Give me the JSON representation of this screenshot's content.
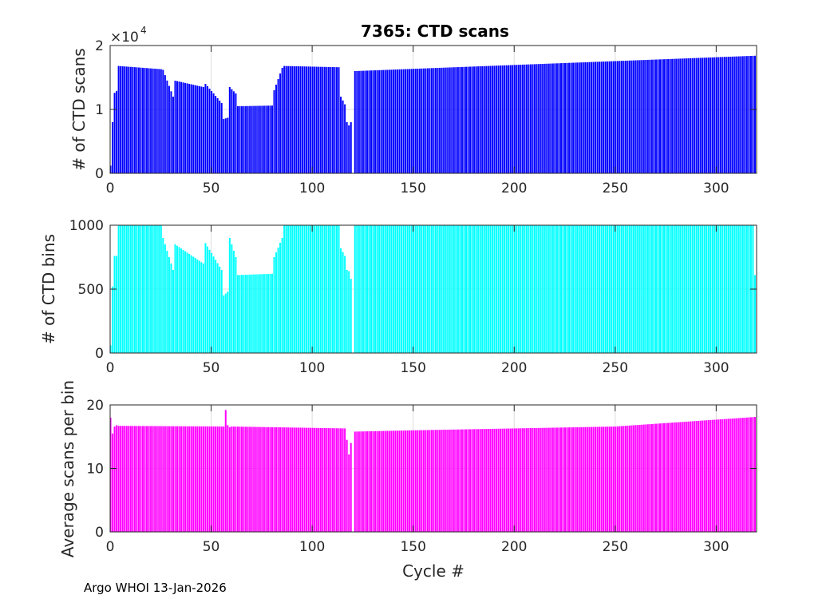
{
  "figure_title": "7365: CTD scans",
  "footer": "Argo WHOI 13-Jan-2026",
  "xlabel": "Cycle #",
  "colors": {
    "scans": "#0000ff",
    "bins": "#00ffff",
    "avg": "#ff00ff",
    "grid": "#dcdcdc",
    "axis": "#262626"
  },
  "chart_data": [
    {
      "type": "bar",
      "title": "7365: CTD scans",
      "ylabel": "# of CTD scans",
      "y_exponent_label": "×10",
      "y_exponent": "4",
      "xlim": [
        0,
        320
      ],
      "ylim": [
        0,
        20000
      ],
      "xticks": [
        0,
        50,
        100,
        150,
        200,
        250,
        300
      ],
      "yticks": [
        0,
        10000,
        20000
      ],
      "ytick_labels": [
        "0",
        "1",
        "2"
      ],
      "grid": true,
      "segments": [
        {
          "x": [
            0,
            1,
            2,
            3
          ],
          "y": [
            1200,
            8000,
            12600,
            12900
          ]
        },
        {
          "x": [
            4,
            25
          ],
          "y": [
            16800,
            16300
          ]
        },
        {
          "x": [
            26,
            31
          ],
          "y": [
            16200,
            12000
          ]
        },
        {
          "x": [
            32,
            46
          ],
          "y": [
            14500,
            13500
          ]
        },
        {
          "x": [
            47,
            55
          ],
          "y": [
            14000,
            11000
          ]
        },
        {
          "x": [
            56,
            58
          ],
          "y": [
            8500,
            8700
          ]
        },
        {
          "x": [
            59,
            62
          ],
          "y": [
            13500,
            12500
          ]
        },
        {
          "x": [
            63,
            80
          ],
          "y": [
            10500,
            10600
          ]
        },
        {
          "x": [
            81,
            85
          ],
          "y": [
            13000,
            16500
          ]
        },
        {
          "x": [
            86,
            113
          ],
          "y": [
            16800,
            16600
          ]
        },
        {
          "x": [
            114,
            116,
            117,
            118,
            119
          ],
          "y": [
            12000,
            10800,
            8000,
            7500,
            8000
          ]
        },
        {
          "x": [
            121,
            319
          ],
          "y": [
            16000,
            18400
          ]
        }
      ],
      "gap_cycles": [
        120
      ]
    },
    {
      "type": "bar",
      "ylabel": "# of CTD bins",
      "xlim": [
        0,
        320
      ],
      "ylim": [
        0,
        1000
      ],
      "xticks": [
        0,
        50,
        100,
        150,
        200,
        250,
        300
      ],
      "yticks": [
        0,
        500,
        1000
      ],
      "ytick_labels": [
        "0",
        "500",
        "1000"
      ],
      "grid": true,
      "segments": [
        {
          "x": [
            0,
            1,
            2,
            3
          ],
          "y": [
            60,
            520,
            760,
            760
          ]
        },
        {
          "x": [
            4,
            25
          ],
          "y": [
            1000,
            1000
          ]
        },
        {
          "x": [
            26,
            31
          ],
          "y": [
            900,
            650
          ]
        },
        {
          "x": [
            32,
            46
          ],
          "y": [
            850,
            700
          ]
        },
        {
          "x": [
            47,
            55
          ],
          "y": [
            860,
            650
          ]
        },
        {
          "x": [
            56,
            58
          ],
          "y": [
            450,
            480
          ]
        },
        {
          "x": [
            59,
            62
          ],
          "y": [
            900,
            750
          ]
        },
        {
          "x": [
            63,
            80
          ],
          "y": [
            610,
            620
          ]
        },
        {
          "x": [
            81,
            85
          ],
          "y": [
            750,
            900
          ]
        },
        {
          "x": [
            86,
            113
          ],
          "y": [
            1000,
            1000
          ]
        },
        {
          "x": [
            114,
            116,
            117,
            118,
            119
          ],
          "y": [
            820,
            760,
            650,
            640,
            580
          ]
        },
        {
          "x": [
            121,
            317
          ],
          "y": [
            1000,
            1000
          ]
        },
        {
          "x": [
            318,
            319
          ],
          "y": [
            1000,
            610
          ]
        }
      ],
      "gap_cycles": [
        120
      ]
    },
    {
      "type": "bar",
      "ylabel": "Average scans per bin",
      "xlabel": "Cycle #",
      "xlim": [
        0,
        320
      ],
      "ylim": [
        0,
        20
      ],
      "xticks": [
        0,
        50,
        100,
        150,
        200,
        250,
        300
      ],
      "yticks": [
        0,
        10,
        20
      ],
      "ytick_labels": [
        "0",
        "10",
        "20"
      ],
      "grid": true,
      "segments": [
        {
          "x": [
            0,
            1,
            2,
            3
          ],
          "y": [
            18,
            15.5,
            16.6,
            16.8
          ]
        },
        {
          "x": [
            4,
            56
          ],
          "y": [
            16.7,
            16.6
          ]
        },
        {
          "x": [
            57,
            58,
            59
          ],
          "y": [
            19.2,
            16.8,
            16.5
          ]
        },
        {
          "x": [
            60,
            116
          ],
          "y": [
            16.6,
            16.3
          ]
        },
        {
          "x": [
            117,
            118,
            119
          ],
          "y": [
            14.5,
            12.2,
            14.0
          ]
        },
        {
          "x": [
            121,
            150,
            200,
            250,
            319
          ],
          "y": [
            15.8,
            16.0,
            16.3,
            16.6,
            18.1
          ]
        }
      ],
      "gap_cycles": [
        120
      ]
    }
  ]
}
